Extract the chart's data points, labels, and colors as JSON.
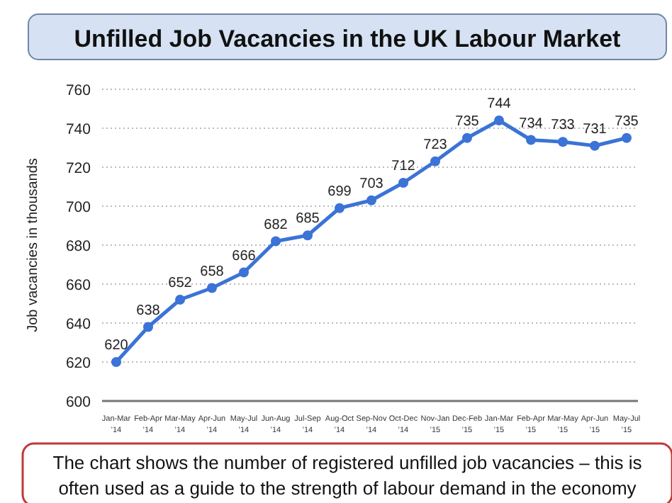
{
  "chart_data": {
    "type": "line",
    "title": "Unfilled Job Vacancies in the UK Labour Market",
    "ylabel": "Job vacancies in thousands",
    "categories": [
      "Jan-Mar '14",
      "Feb-Apr '14",
      "Mar-May '14",
      "Apr-Jun '14",
      "May-Jul '14",
      "Jun-Aug '14",
      "Jul-Sep '14",
      "Aug-Oct '14",
      "Sep-Nov '14",
      "Oct-Dec '14",
      "Nov-Jan '15",
      "Dec-Feb '15",
      "Jan-Mar '15",
      "Feb-Apr '15",
      "Mar-May '15",
      "Apr-Jun '15",
      "May-Jul '15"
    ],
    "series": [
      {
        "color": "#3b73d6",
        "values": [
          620,
          638,
          652,
          658,
          666,
          682,
          685,
          699,
          703,
          712,
          723,
          735,
          744,
          734,
          733,
          731,
          735
        ]
      }
    ],
    "ylim": [
      600,
      760
    ],
    "yticks": [
      600,
      620,
      640,
      660,
      680,
      700,
      720,
      740,
      760
    ],
    "grid": "y",
    "marker": "circle",
    "line_style": "solid",
    "data_labels": true,
    "annotations": [
      "The chart shows the number of registered unfilled job vacancies – this is often used as a guide to the strength of labour demand in the economy"
    ]
  }
}
